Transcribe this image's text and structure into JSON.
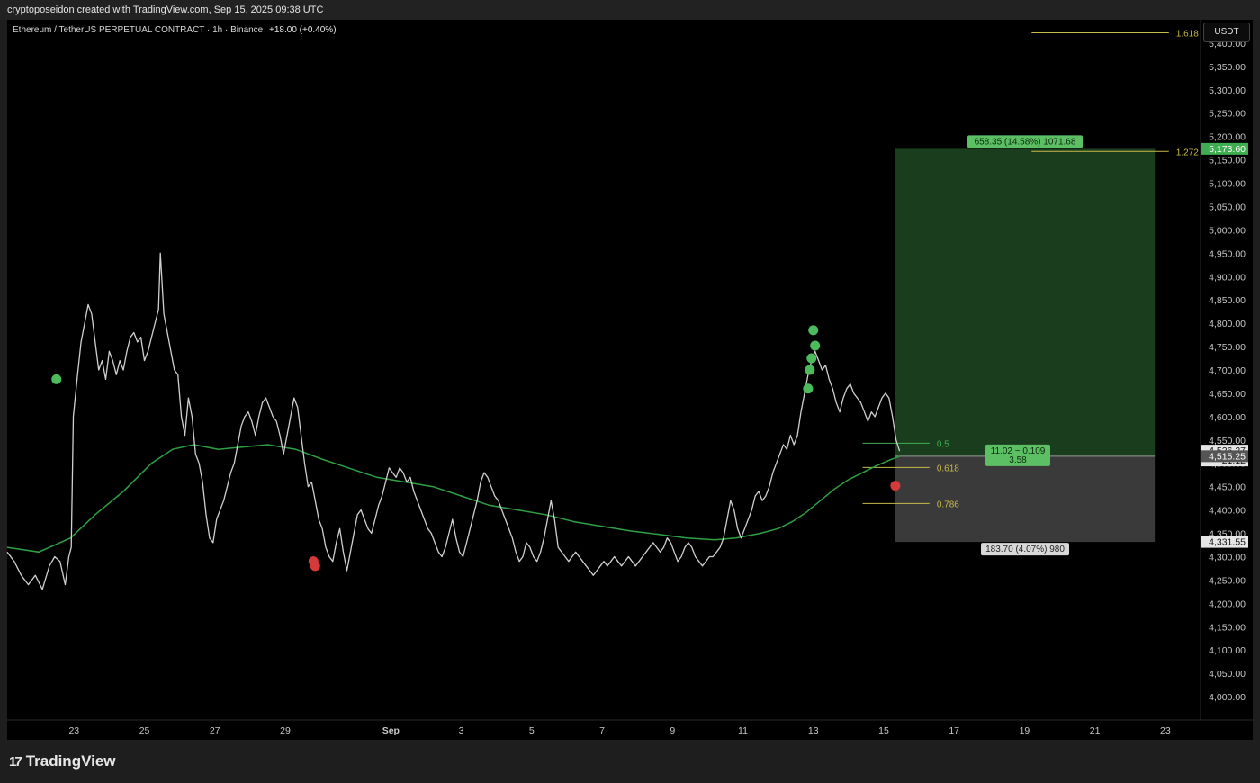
{
  "header": {
    "credit": "cryptoposeidon created with TradingView.com, Sep 15, 2025 09:38 UTC"
  },
  "symbol": {
    "name": "Ethereum / TetherUS PERPETUAL CONTRACT · 1h · Binance",
    "change": "+18.00 (+0.40%)"
  },
  "currency_button": "USDT",
  "brand": {
    "logo": "17",
    "name": "TradingView"
  },
  "chart_data": {
    "type": "line",
    "description_series": "price",
    "y_axis": {
      "range": [
        3950,
        5450
      ],
      "ticks": [
        4000,
        4050,
        4100,
        4150,
        4200,
        4250,
        4300,
        4350,
        4400,
        4450,
        4500,
        4550,
        4600,
        4650,
        4700,
        4750,
        4800,
        4850,
        4900,
        4950,
        5000,
        5050,
        5100,
        5150,
        5200,
        5250,
        5300,
        5350,
        5400
      ],
      "tick_labels": [
        "4,000.00",
        "4,050.00",
        "4,100.00",
        "4,150.00",
        "4,200.00",
        "4,250.00",
        "4,300.00",
        "4,350.00",
        "4,400.00",
        "4,450.00",
        "4,500.00",
        "4,550.00",
        "4,600.00",
        "4,650.00",
        "4,700.00",
        "4,750.00",
        "4,800.00",
        "4,850.00",
        "4,900.00",
        "4,950.00",
        "5,000.00",
        "5,050.00",
        "5,100.00",
        "5,150.00",
        "5,200.00",
        "5,250.00",
        "5,300.00",
        "5,350.00",
        "5,400.00"
      ]
    },
    "x_axis": {
      "range": [
        21.1,
        55.0
      ],
      "ticks": [
        {
          "x": 23,
          "label": "23"
        },
        {
          "x": 25,
          "label": "25"
        },
        {
          "x": 27,
          "label": "27"
        },
        {
          "x": 29,
          "label": "29"
        },
        {
          "x": 32,
          "label": "Sep"
        },
        {
          "x": 34,
          "label": "3"
        },
        {
          "x": 36,
          "label": "5"
        },
        {
          "x": 38,
          "label": "7"
        },
        {
          "x": 40,
          "label": "9"
        },
        {
          "x": 42,
          "label": "11"
        },
        {
          "x": 44,
          "label": "13"
        },
        {
          "x": 46,
          "label": "15"
        },
        {
          "x": 48,
          "label": "17"
        },
        {
          "x": 50,
          "label": "19"
        },
        {
          "x": 52,
          "label": "21"
        },
        {
          "x": 54,
          "label": "23"
        }
      ]
    },
    "price_series": [
      [
        21.1,
        4310
      ],
      [
        21.3,
        4290
      ],
      [
        21.5,
        4260
      ],
      [
        21.7,
        4240
      ],
      [
        21.9,
        4260
      ],
      [
        22.1,
        4230
      ],
      [
        22.3,
        4280
      ],
      [
        22.45,
        4300
      ],
      [
        22.6,
        4290
      ],
      [
        22.75,
        4240
      ],
      [
        22.85,
        4300
      ],
      [
        22.92,
        4320
      ],
      [
        22.98,
        4600
      ],
      [
        23.1,
        4690
      ],
      [
        23.2,
        4760
      ],
      [
        23.3,
        4800
      ],
      [
        23.4,
        4840
      ],
      [
        23.5,
        4820
      ],
      [
        23.6,
        4760
      ],
      [
        23.7,
        4700
      ],
      [
        23.8,
        4720
      ],
      [
        23.9,
        4680
      ],
      [
        24.0,
        4740
      ],
      [
        24.1,
        4720
      ],
      [
        24.2,
        4690
      ],
      [
        24.3,
        4720
      ],
      [
        24.4,
        4700
      ],
      [
        24.5,
        4740
      ],
      [
        24.6,
        4770
      ],
      [
        24.7,
        4780
      ],
      [
        24.8,
        4760
      ],
      [
        24.9,
        4770
      ],
      [
        25.0,
        4720
      ],
      [
        25.1,
        4740
      ],
      [
        25.2,
        4770
      ],
      [
        25.3,
        4800
      ],
      [
        25.4,
        4830
      ],
      [
        25.45,
        4950
      ],
      [
        25.55,
        4820
      ],
      [
        25.65,
        4780
      ],
      [
        25.75,
        4740
      ],
      [
        25.85,
        4700
      ],
      [
        25.95,
        4690
      ],
      [
        26.05,
        4600
      ],
      [
        26.15,
        4560
      ],
      [
        26.25,
        4640
      ],
      [
        26.35,
        4600
      ],
      [
        26.45,
        4520
      ],
      [
        26.55,
        4500
      ],
      [
        26.65,
        4460
      ],
      [
        26.75,
        4390
      ],
      [
        26.85,
        4340
      ],
      [
        26.95,
        4330
      ],
      [
        27.05,
        4380
      ],
      [
        27.15,
        4400
      ],
      [
        27.25,
        4420
      ],
      [
        27.35,
        4450
      ],
      [
        27.45,
        4480
      ],
      [
        27.55,
        4500
      ],
      [
        27.65,
        4540
      ],
      [
        27.75,
        4580
      ],
      [
        27.85,
        4600
      ],
      [
        27.95,
        4610
      ],
      [
        28.05,
        4590
      ],
      [
        28.15,
        4560
      ],
      [
        28.25,
        4600
      ],
      [
        28.35,
        4630
      ],
      [
        28.45,
        4640
      ],
      [
        28.55,
        4620
      ],
      [
        28.65,
        4600
      ],
      [
        28.75,
        4590
      ],
      [
        28.85,
        4560
      ],
      [
        28.95,
        4520
      ],
      [
        29.05,
        4560
      ],
      [
        29.15,
        4600
      ],
      [
        29.25,
        4640
      ],
      [
        29.35,
        4620
      ],
      [
        29.45,
        4560
      ],
      [
        29.55,
        4500
      ],
      [
        29.65,
        4450
      ],
      [
        29.75,
        4460
      ],
      [
        29.85,
        4420
      ],
      [
        29.95,
        4380
      ],
      [
        30.05,
        4360
      ],
      [
        30.15,
        4320
      ],
      [
        30.25,
        4300
      ],
      [
        30.35,
        4290
      ],
      [
        30.45,
        4330
      ],
      [
        30.55,
        4360
      ],
      [
        30.65,
        4310
      ],
      [
        30.75,
        4270
      ],
      [
        30.85,
        4310
      ],
      [
        30.95,
        4350
      ],
      [
        31.05,
        4390
      ],
      [
        31.15,
        4400
      ],
      [
        31.25,
        4380
      ],
      [
        31.35,
        4360
      ],
      [
        31.45,
        4350
      ],
      [
        31.55,
        4380
      ],
      [
        31.65,
        4410
      ],
      [
        31.75,
        4430
      ],
      [
        31.85,
        4460
      ],
      [
        31.95,
        4490
      ],
      [
        32.05,
        4480
      ],
      [
        32.15,
        4470
      ],
      [
        32.25,
        4490
      ],
      [
        32.35,
        4480
      ],
      [
        32.45,
        4460
      ],
      [
        32.55,
        4470
      ],
      [
        32.65,
        4440
      ],
      [
        32.75,
        4420
      ],
      [
        32.85,
        4400
      ],
      [
        32.95,
        4380
      ],
      [
        33.05,
        4360
      ],
      [
        33.15,
        4350
      ],
      [
        33.25,
        4330
      ],
      [
        33.35,
        4310
      ],
      [
        33.45,
        4300
      ],
      [
        33.55,
        4320
      ],
      [
        33.65,
        4350
      ],
      [
        33.75,
        4380
      ],
      [
        33.85,
        4340
      ],
      [
        33.95,
        4310
      ],
      [
        34.05,
        4300
      ],
      [
        34.15,
        4330
      ],
      [
        34.25,
        4360
      ],
      [
        34.35,
        4390
      ],
      [
        34.45,
        4420
      ],
      [
        34.55,
        4460
      ],
      [
        34.65,
        4480
      ],
      [
        34.75,
        4470
      ],
      [
        34.85,
        4450
      ],
      [
        34.95,
        4430
      ],
      [
        35.05,
        4420
      ],
      [
        35.15,
        4400
      ],
      [
        35.25,
        4380
      ],
      [
        35.35,
        4360
      ],
      [
        35.45,
        4340
      ],
      [
        35.55,
        4310
      ],
      [
        35.65,
        4290
      ],
      [
        35.75,
        4300
      ],
      [
        35.85,
        4330
      ],
      [
        35.95,
        4320
      ],
      [
        36.05,
        4300
      ],
      [
        36.15,
        4290
      ],
      [
        36.25,
        4310
      ],
      [
        36.35,
        4340
      ],
      [
        36.45,
        4380
      ],
      [
        36.55,
        4420
      ],
      [
        36.65,
        4380
      ],
      [
        36.75,
        4320
      ],
      [
        36.85,
        4310
      ],
      [
        36.95,
        4300
      ],
      [
        37.05,
        4290
      ],
      [
        37.15,
        4300
      ],
      [
        37.25,
        4310
      ],
      [
        37.35,
        4300
      ],
      [
        37.45,
        4290
      ],
      [
        37.55,
        4280
      ],
      [
        37.65,
        4270
      ],
      [
        37.75,
        4260
      ],
      [
        37.85,
        4270
      ],
      [
        37.95,
        4280
      ],
      [
        38.05,
        4290
      ],
      [
        38.15,
        4280
      ],
      [
        38.25,
        4290
      ],
      [
        38.35,
        4300
      ],
      [
        38.45,
        4290
      ],
      [
        38.55,
        4280
      ],
      [
        38.65,
        4290
      ],
      [
        38.75,
        4300
      ],
      [
        38.85,
        4290
      ],
      [
        38.95,
        4280
      ],
      [
        39.05,
        4290
      ],
      [
        39.15,
        4300
      ],
      [
        39.25,
        4310
      ],
      [
        39.35,
        4320
      ],
      [
        39.45,
        4330
      ],
      [
        39.55,
        4320
      ],
      [
        39.65,
        4310
      ],
      [
        39.75,
        4320
      ],
      [
        39.85,
        4340
      ],
      [
        39.95,
        4330
      ],
      [
        40.05,
        4310
      ],
      [
        40.15,
        4290
      ],
      [
        40.25,
        4300
      ],
      [
        40.35,
        4320
      ],
      [
        40.45,
        4330
      ],
      [
        40.55,
        4320
      ],
      [
        40.65,
        4300
      ],
      [
        40.75,
        4290
      ],
      [
        40.85,
        4280
      ],
      [
        40.95,
        4290
      ],
      [
        41.05,
        4300
      ],
      [
        41.15,
        4300
      ],
      [
        41.25,
        4310
      ],
      [
        41.35,
        4320
      ],
      [
        41.45,
        4340
      ],
      [
        41.55,
        4380
      ],
      [
        41.65,
        4420
      ],
      [
        41.75,
        4400
      ],
      [
        41.85,
        4360
      ],
      [
        41.95,
        4340
      ],
      [
        42.05,
        4360
      ],
      [
        42.15,
        4380
      ],
      [
        42.25,
        4400
      ],
      [
        42.35,
        4430
      ],
      [
        42.45,
        4440
      ],
      [
        42.55,
        4420
      ],
      [
        42.65,
        4430
      ],
      [
        42.75,
        4450
      ],
      [
        42.85,
        4480
      ],
      [
        42.95,
        4500
      ],
      [
        43.05,
        4520
      ],
      [
        43.15,
        4540
      ],
      [
        43.25,
        4530
      ],
      [
        43.35,
        4560
      ],
      [
        43.45,
        4540
      ],
      [
        43.55,
        4560
      ],
      [
        43.65,
        4610
      ],
      [
        43.75,
        4650
      ],
      [
        43.85,
        4690
      ],
      [
        43.95,
        4720
      ],
      [
        44.05,
        4740
      ],
      [
        44.15,
        4720
      ],
      [
        44.25,
        4700
      ],
      [
        44.35,
        4710
      ],
      [
        44.45,
        4680
      ],
      [
        44.55,
        4660
      ],
      [
        44.65,
        4630
      ],
      [
        44.75,
        4610
      ],
      [
        44.85,
        4640
      ],
      [
        44.95,
        4660
      ],
      [
        45.05,
        4670
      ],
      [
        45.15,
        4650
      ],
      [
        45.25,
        4640
      ],
      [
        45.35,
        4630
      ],
      [
        45.45,
        4610
      ],
      [
        45.55,
        4590
      ],
      [
        45.65,
        4610
      ],
      [
        45.75,
        4600
      ],
      [
        45.85,
        4620
      ],
      [
        45.95,
        4640
      ],
      [
        46.05,
        4650
      ],
      [
        46.15,
        4640
      ],
      [
        46.25,
        4600
      ],
      [
        46.35,
        4550
      ],
      [
        46.45,
        4526
      ]
    ],
    "ma_series": [
      [
        21.1,
        4320
      ],
      [
        22.0,
        4310
      ],
      [
        22.9,
        4340
      ],
      [
        23.6,
        4390
      ],
      [
        24.4,
        4440
      ],
      [
        25.2,
        4500
      ],
      [
        25.8,
        4530
      ],
      [
        26.4,
        4540
      ],
      [
        27.1,
        4530
      ],
      [
        27.8,
        4535
      ],
      [
        28.5,
        4540
      ],
      [
        29.3,
        4530
      ],
      [
        30.0,
        4510
      ],
      [
        30.8,
        4490
      ],
      [
        31.6,
        4470
      ],
      [
        32.4,
        4460
      ],
      [
        33.2,
        4450
      ],
      [
        34.0,
        4430
      ],
      [
        34.8,
        4410
      ],
      [
        35.6,
        4400
      ],
      [
        36.4,
        4390
      ],
      [
        37.2,
        4375
      ],
      [
        38.0,
        4365
      ],
      [
        38.8,
        4355
      ],
      [
        39.6,
        4348
      ],
      [
        40.4,
        4340
      ],
      [
        41.2,
        4336
      ],
      [
        41.8,
        4340
      ],
      [
        42.5,
        4350
      ],
      [
        43.0,
        4360
      ],
      [
        43.4,
        4375
      ],
      [
        43.8,
        4395
      ],
      [
        44.2,
        4420
      ],
      [
        44.6,
        4445
      ],
      [
        45.0,
        4465
      ],
      [
        45.4,
        4480
      ],
      [
        45.8,
        4495
      ],
      [
        46.2,
        4508
      ],
      [
        46.45,
        4515
      ]
    ],
    "long_position": {
      "x_start": 46.33,
      "x_end": 53.7,
      "entry": 4515.25,
      "target": 5173.6,
      "stop": 4331.55,
      "target_label": "658.35 (14.58%) 1071.68",
      "stop_label": "183.70 (4.07%) 980",
      "center_label_top": "11.02 ~ 0.109",
      "center_label_bottom": "3.58"
    },
    "fib_levels": [
      {
        "label": "1.618",
        "price": 5422,
        "x_start": 50.2,
        "x_end": 54.1
      },
      {
        "label": "1.272",
        "price": 5168,
        "x_start": 50.2,
        "x_end": 54.1
      },
      {
        "label": "0.5",
        "price": 4543,
        "x_start": 45.4,
        "x_end": 47.3
      },
      {
        "label": "0.618",
        "price": 4491,
        "x_start": 45.4,
        "x_end": 47.3
      },
      {
        "label": "0.786",
        "price": 4414,
        "x_start": 45.4,
        "x_end": 47.3
      }
    ],
    "signals": {
      "green": [
        [
          22.5,
          4680
        ],
        [
          44.0,
          4785
        ],
        [
          44.05,
          4752
        ],
        [
          43.95,
          4725
        ],
        [
          43.9,
          4700
        ],
        [
          43.85,
          4660
        ]
      ],
      "red": [
        [
          29.8,
          4290
        ],
        [
          29.85,
          4280
        ],
        [
          46.33,
          4452
        ]
      ]
    },
    "price_tags": [
      {
        "label": "5,173.60",
        "price": 5173.6,
        "color": "#3fae52"
      },
      {
        "label": "4,526.27",
        "sublabel": "21:12",
        "price": 4526.27,
        "color": "#e6e6e6"
      },
      {
        "label": "4,515.25",
        "price": 4515.25,
        "color": "#555555"
      },
      {
        "label": "4,331.55",
        "price": 4331.55,
        "color": "#e6e6e6"
      }
    ],
    "colors": {
      "price": "#d0d0d0",
      "ma": "#2ea043",
      "profit_zone": "#1a3d1d",
      "loss_zone": "#3a3a3a",
      "fib_green": "#3fae52",
      "fib_yellow": "#c9b94a",
      "signal_green": "#4cbb5c",
      "signal_red": "#d63a3a"
    }
  }
}
